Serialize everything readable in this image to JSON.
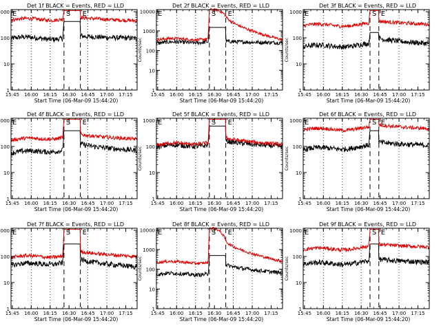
{
  "colors": {
    "events": "#000000",
    "lld": "#e00000",
    "axes": "#000000",
    "background": "#ffffff"
  },
  "chart_data": [
    {
      "type": "line",
      "title": "Det 1f BLACK = Events, RED = LLD",
      "xlabel": "Start Time (06-Mar-09 15:44:20)",
      "ylabel": "Counts/sec",
      "x_ticks": [
        "15:45",
        "16:00",
        "16:15",
        "16:30",
        "16:45",
        "17:00",
        "17:15"
      ],
      "y_ticks": [
        "1",
        "10",
        "100",
        "1000"
      ],
      "ylim": [
        1,
        1200
      ],
      "yscale": "log",
      "xlim": [
        "15:44",
        "17:24"
      ],
      "dotted_gridlines_at": [
        "16:00",
        "16:15",
        "16:45",
        "17:00"
      ],
      "dashed_lines_at": [
        "16:26",
        "16:39"
      ],
      "markers": [
        {
          "label": "E",
          "at": "15:44"
        },
        {
          "label": "S",
          "at": "16:26"
        },
        {
          "label": "E",
          "at": "16:39"
        }
      ],
      "series": [
        {
          "name": "BLACK = Events",
          "color": "#000000",
          "values": {
            "start": 95,
            "pre": 100,
            "flare": 420,
            "post_start": 120,
            "end": 95
          }
        },
        {
          "name": "RED = LLD",
          "color": "#e00000",
          "values": {
            "start": 470,
            "pre": 550,
            "flare": 1100,
            "post_start": 620,
            "end": 450
          }
        }
      ]
    },
    {
      "type": "line",
      "title": "Det 2f BLACK = Events, RED = LLD",
      "xlabel": "Start Time (06-Mar-09 15:44:20)",
      "ylabel": "Counts/sec",
      "x_ticks": [
        "15:45",
        "16:00",
        "16:15",
        "16:30",
        "16:45",
        "17:00",
        "17:15"
      ],
      "y_ticks": [
        "1",
        "10",
        "100",
        "1000",
        "10000"
      ],
      "ylim": [
        1,
        12000
      ],
      "yscale": "log",
      "xlim": [
        "15:44",
        "17:24"
      ],
      "dotted_gridlines_at": [
        "16:00",
        "16:15",
        "16:45",
        "17:00"
      ],
      "dashed_lines_at": [
        "16:26",
        "16:39"
      ],
      "markers": [
        {
          "label": "E",
          "at": "15:44"
        },
        {
          "label": "S",
          "at": "16:26"
        },
        {
          "label": "E",
          "at": "16:39"
        }
      ],
      "series": [
        {
          "name": "BLACK = Events",
          "color": "#000000",
          "values": {
            "start": 230,
            "pre": 300,
            "flare": 1500,
            "post_start": 300,
            "end": 250
          }
        },
        {
          "name": "RED = LLD",
          "color": "#e00000",
          "values": {
            "start": 350,
            "pre": 420,
            "flare": 12000,
            "post_start": 6000,
            "end": 350
          }
        }
      ]
    },
    {
      "type": "line",
      "title": "Det 3f BLACK = Events, RED = LLD",
      "xlabel": "Start Time (06-Mar-09 15:44:20)",
      "ylabel": "Counts/sec",
      "x_ticks": [
        "15:45",
        "16:00",
        "16:15",
        "16:30",
        "16:45",
        "17:00",
        "17:15"
      ],
      "y_ticks": [
        "1",
        "10",
        "100",
        "1000"
      ],
      "ylim": [
        1,
        1200
      ],
      "yscale": "log",
      "xlim": [
        "15:44",
        "17:24"
      ],
      "dotted_gridlines_at": [
        "16:00",
        "16:15",
        "16:30",
        "17:00"
      ],
      "dashed_lines_at": [
        "16:37",
        "16:44"
      ],
      "markers": [
        {
          "label": "E",
          "at": "15:44"
        },
        {
          "label": "S",
          "at": "16:37"
        },
        {
          "label": "E",
          "at": "16:44"
        }
      ],
      "series": [
        {
          "name": "BLACK = Events",
          "color": "#000000",
          "values": {
            "start": 45,
            "pre": 55,
            "flare": 160,
            "post_start": 100,
            "end": 60
          }
        },
        {
          "name": "RED = LLD",
          "color": "#e00000",
          "values": {
            "start": 290,
            "pre": 330,
            "flare": 1100,
            "post_start": 450,
            "end": 330
          }
        }
      ]
    },
    {
      "type": "line",
      "title": "Det 4f BLACK = Events, RED = LLD",
      "xlabel": "Start Time (06-Mar-09 15:44:20)",
      "ylabel": "Counts/sec",
      "x_ticks": [
        "15:45",
        "16:00",
        "16:15",
        "16:30",
        "16:45",
        "17:00",
        "17:15"
      ],
      "y_ticks": [
        "1",
        "10",
        "100",
        "1000"
      ],
      "ylim": [
        1,
        1200
      ],
      "yscale": "log",
      "xlim": [
        "15:44",
        "17:24"
      ],
      "dotted_gridlines_at": [
        "16:00",
        "16:15",
        "16:45",
        "17:00"
      ],
      "dashed_lines_at": [
        "16:26",
        "16:39"
      ],
      "markers": [
        {
          "label": "E",
          "at": "15:44"
        },
        {
          "label": "S",
          "at": "16:26"
        },
        {
          "label": "E",
          "at": "16:39"
        }
      ],
      "series": [
        {
          "name": "BLACK = Events",
          "color": "#000000",
          "values": {
            "start": 55,
            "pre": 75,
            "flare": 400,
            "post_start": 130,
            "end": 70
          }
        },
        {
          "name": "RED = LLD",
          "color": "#e00000",
          "values": {
            "start": 170,
            "pre": 230,
            "flare": 1100,
            "post_start": 300,
            "end": 190
          }
        }
      ]
    },
    {
      "type": "line",
      "title": "Det 5f BLACK = Events, RED = LLD",
      "xlabel": "Start Time (06-Mar-09 15:44:20)",
      "ylabel": "Counts/sec",
      "x_ticks": [
        "15:45",
        "16:00",
        "16:15",
        "16:30",
        "16:45",
        "17:00",
        "17:15"
      ],
      "y_ticks": [
        "1",
        "10",
        "100",
        "1000"
      ],
      "ylim": [
        1,
        1200
      ],
      "yscale": "log",
      "xlim": [
        "15:44",
        "17:24"
      ],
      "dotted_gridlines_at": [
        "16:00",
        "16:15",
        "16:45",
        "17:00"
      ],
      "dashed_lines_at": [
        "16:26",
        "16:39"
      ],
      "markers": [
        {
          "label": "E",
          "at": "15:44"
        },
        {
          "label": "S",
          "at": "16:26"
        },
        {
          "label": "E",
          "at": "16:39"
        }
      ],
      "series": [
        {
          "name": "BLACK = Events",
          "color": "#000000",
          "values": {
            "start": 95,
            "pre": 120,
            "flare": 600,
            "post_start": 170,
            "end": 100
          }
        },
        {
          "name": "RED = LLD",
          "color": "#e00000",
          "values": {
            "start": 110,
            "pre": 150,
            "flare": 1100,
            "post_start": 220,
            "end": 120
          }
        }
      ]
    },
    {
      "type": "line",
      "title": "Det 6f BLACK = Events, RED = LLD",
      "xlabel": "Start Time (06-Mar-09 15:44:20)",
      "ylabel": "Counts/sec",
      "x_ticks": [
        "15:45",
        "16:00",
        "16:15",
        "16:30",
        "16:45",
        "17:00",
        "17:15"
      ],
      "y_ticks": [
        "1",
        "10",
        "100",
        "1000"
      ],
      "ylim": [
        1,
        1200
      ],
      "yscale": "log",
      "xlim": [
        "15:44",
        "17:24"
      ],
      "dotted_gridlines_at": [
        "16:00",
        "16:15",
        "16:30",
        "17:00"
      ],
      "dashed_lines_at": [
        "16:37",
        "16:44"
      ],
      "markers": [
        {
          "label": "E",
          "at": "15:44"
        },
        {
          "label": "S",
          "at": "16:37"
        },
        {
          "label": "E",
          "at": "16:44"
        }
      ],
      "series": [
        {
          "name": "BLACK = Events",
          "color": "#000000",
          "values": {
            "start": 75,
            "pre": 100,
            "flare": 400,
            "post_start": 150,
            "end": 110
          }
        },
        {
          "name": "RED = LLD",
          "color": "#e00000",
          "values": {
            "start": 430,
            "pre": 500,
            "flare": 1100,
            "post_start": 700,
            "end": 480
          }
        }
      ]
    },
    {
      "type": "line",
      "title": "Det 7f BLACK = Events, RED = LLD",
      "xlabel": "Start Time (06-Mar-09 15:44:20)",
      "ylabel": "Counts/sec",
      "x_ticks": [
        "15:45",
        "16:00",
        "16:15",
        "16:30",
        "16:45",
        "17:00",
        "17:15"
      ],
      "y_ticks": [
        "1",
        "10",
        "100",
        "1000"
      ],
      "ylim": [
        1,
        1200
      ],
      "yscale": "log",
      "xlim": [
        "15:44",
        "17:24"
      ],
      "dotted_gridlines_at": [
        "16:00",
        "16:15",
        "16:45",
        "17:00"
      ],
      "dashed_lines_at": [
        "16:26",
        "16:39"
      ],
      "markers": [
        {
          "label": "E",
          "at": "15:44"
        },
        {
          "label": "S",
          "at": "16:26"
        },
        {
          "label": "E",
          "at": "16:39"
        }
      ],
      "series": [
        {
          "name": "BLACK = Events",
          "color": "#000000",
          "values": {
            "start": 45,
            "pre": 60,
            "flare": 300,
            "post_start": 80,
            "end": 40
          }
        },
        {
          "name": "RED = LLD",
          "color": "#e00000",
          "values": {
            "start": 90,
            "pre": 110,
            "flare": 1100,
            "post_start": 160,
            "end": 100
          }
        }
      ]
    },
    {
      "type": "line",
      "title": "Det 8f BLACK = Events, RED = LLD",
      "xlabel": "Start Time (06-Mar-09 15:44:20)",
      "ylabel": "Counts/sec",
      "x_ticks": [
        "15:45",
        "16:00",
        "16:15",
        "16:30",
        "16:45",
        "17:00",
        "17:15"
      ],
      "y_ticks": [
        "1",
        "10",
        "100",
        "1000",
        "10000"
      ],
      "ylim": [
        1,
        12000
      ],
      "yscale": "log",
      "xlim": [
        "15:44",
        "17:24"
      ],
      "dotted_gridlines_at": [
        "16:00",
        "16:15",
        "16:45",
        "17:00"
      ],
      "dashed_lines_at": [
        "16:26",
        "16:39"
      ],
      "markers": [
        {
          "label": "E",
          "at": "15:44"
        },
        {
          "label": "S",
          "at": "16:26"
        },
        {
          "label": "E",
          "at": "16:39"
        }
      ],
      "series": [
        {
          "name": "BLACK = Events",
          "color": "#000000",
          "values": {
            "start": 55,
            "pre": 60,
            "flare": 500,
            "post_start": 180,
            "end": 65
          }
        },
        {
          "name": "RED = LLD",
          "color": "#e00000",
          "values": {
            "start": 220,
            "pre": 230,
            "flare": 12000,
            "post_start": 3000,
            "end": 250
          }
        }
      ]
    },
    {
      "type": "line",
      "title": "Det 9f BLACK = Events, RED = LLD",
      "xlabel": "Start Time (06-Mar-09 15:44:20)",
      "ylabel": "Counts/sec",
      "x_ticks": [
        "15:45",
        "16:00",
        "16:15",
        "16:30",
        "16:45",
        "17:00",
        "17:15"
      ],
      "y_ticks": [
        "1",
        "10",
        "100",
        "1000"
      ],
      "ylim": [
        1,
        1200
      ],
      "yscale": "log",
      "xlim": [
        "15:44",
        "17:24"
      ],
      "dotted_gridlines_at": [
        "16:00",
        "16:15",
        "16:30",
        "17:00"
      ],
      "dashed_lines_at": [
        "16:37",
        "16:44"
      ],
      "markers": [
        {
          "label": "E",
          "at": "15:44"
        },
        {
          "label": "S",
          "at": "16:37"
        },
        {
          "label": "E",
          "at": "16:44"
        }
      ],
      "series": [
        {
          "name": "BLACK = Events",
          "color": "#000000",
          "values": {
            "start": 50,
            "pre": 60,
            "flare": 300,
            "post_start": 80,
            "end": 60
          }
        },
        {
          "name": "RED = LLD",
          "color": "#e00000",
          "values": {
            "start": 180,
            "pre": 220,
            "flare": 1100,
            "post_start": 300,
            "end": 230
          }
        }
      ]
    }
  ]
}
